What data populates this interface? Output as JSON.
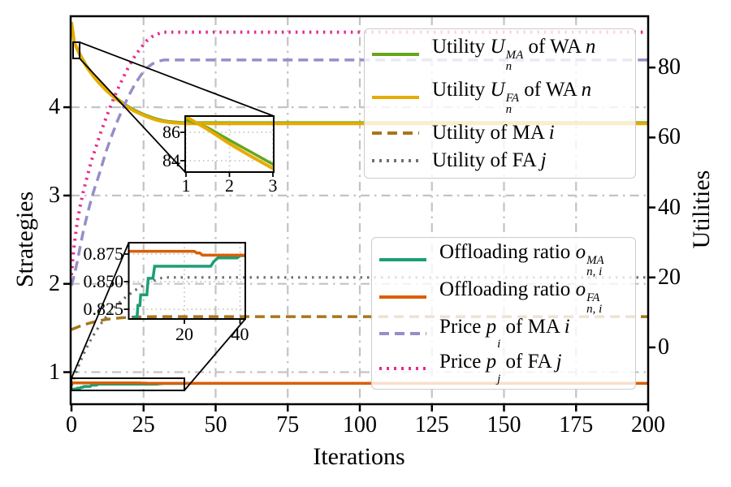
{
  "axes": {
    "x": {
      "label": "Iterations",
      "range": [
        0,
        200
      ],
      "ticks": [
        {
          "label": "0",
          "value": 0
        },
        {
          "label": "25",
          "value": 25
        },
        {
          "label": "50",
          "value": 50
        },
        {
          "label": "75",
          "value": 75
        },
        {
          "label": "100",
          "value": 100
        },
        {
          "label": "125",
          "value": 125
        },
        {
          "label": "150",
          "value": 150
        },
        {
          "label": "175",
          "value": 175
        },
        {
          "label": "200",
          "value": 200
        }
      ]
    },
    "left": {
      "label": "Strategies",
      "range": [
        0.64,
        5.04
      ],
      "ticks": [
        {
          "label": "4",
          "value": 4
        },
        {
          "label": "3",
          "value": 3
        },
        {
          "label": "2",
          "value": 2
        },
        {
          "label": "1",
          "value": 1
        }
      ]
    },
    "right": {
      "label": "Utilities",
      "range": [
        -16,
        95
      ],
      "ticks": [
        {
          "label": "80",
          "value": 80
        },
        {
          "label": "60",
          "value": 60
        },
        {
          "label": "40",
          "value": 40
        },
        {
          "label": "20",
          "value": 20
        },
        {
          "label": "0",
          "value": 0
        }
      ]
    }
  },
  "colors": {
    "green": "#66a61e",
    "yellow": "#e6ab02",
    "brown": "#a6761d",
    "gray": "#6f6f6f",
    "teal": "#1b9e77",
    "orange": "#d95f02",
    "purple": "#958fc9",
    "pink": "#e7298a",
    "grid": "#c3c3c3",
    "frame": "#000000"
  },
  "chart_data": {
    "type": "line",
    "xlabel": "Iterations",
    "ylabel_left": "Strategies",
    "ylabel_right": "Utilities",
    "x_range": [
      0,
      200
    ],
    "grid": "dash-dot gridlines at x ticks (25..200) and left-axis ticks (1..4)",
    "series": [
      {
        "name": "Utility U_n^MA of WA n",
        "axis": "right",
        "color_key": "green",
        "dash": "solid",
        "width": 3.5,
        "points": [
          [
            0,
            92.6
          ],
          [
            0.5,
            89.5
          ],
          [
            1,
            86.9
          ],
          [
            1.5,
            86.32
          ],
          [
            2,
            85.45
          ],
          [
            2.5,
            84.6
          ],
          [
            3,
            83.75
          ],
          [
            4,
            82.2
          ],
          [
            5,
            80.8
          ],
          [
            6,
            79.6
          ],
          [
            8,
            77.4
          ],
          [
            10,
            75.5
          ],
          [
            12,
            73.8
          ],
          [
            14,
            72.3
          ],
          [
            16,
            71.0
          ],
          [
            18,
            69.8
          ],
          [
            20,
            68.7
          ],
          [
            22,
            67.8
          ],
          [
            24,
            67.0
          ],
          [
            26,
            66.3
          ],
          [
            28,
            65.7
          ],
          [
            30,
            65.2
          ],
          [
            32,
            64.8
          ],
          [
            34,
            64.55
          ],
          [
            36,
            64.4
          ],
          [
            38,
            64.3
          ],
          [
            40,
            64.25
          ],
          [
            200,
            64.25
          ]
        ]
      },
      {
        "name": "Utility U_n^FA of WA n",
        "axis": "right",
        "color_key": "yellow",
        "dash": "solid",
        "width": 4,
        "points": [
          [
            0,
            93.0
          ],
          [
            0.5,
            90.0
          ],
          [
            1,
            87.1
          ],
          [
            1.5,
            86.2
          ],
          [
            2,
            85.2
          ],
          [
            2.5,
            84.3
          ],
          [
            3,
            83.45
          ],
          [
            4,
            81.9
          ],
          [
            5,
            80.5
          ],
          [
            6,
            79.3
          ],
          [
            8,
            77.1
          ],
          [
            10,
            75.2
          ],
          [
            12,
            73.5
          ],
          [
            14,
            72.0
          ],
          [
            16,
            70.7
          ],
          [
            18,
            69.5
          ],
          [
            20,
            68.4
          ],
          [
            22,
            67.5
          ],
          [
            24,
            66.7
          ],
          [
            26,
            66.0
          ],
          [
            28,
            65.4
          ],
          [
            30,
            64.9
          ],
          [
            32,
            64.55
          ],
          [
            34,
            64.3
          ],
          [
            36,
            64.15
          ],
          [
            38,
            64.06
          ],
          [
            40,
            64.0
          ],
          [
            200,
            64.0
          ]
        ]
      },
      {
        "name": "Utility of MA i",
        "axis": "right",
        "color_key": "brown",
        "dash": "dashed",
        "width": 3.5,
        "points": [
          [
            0,
            5.1
          ],
          [
            3,
            6.1
          ],
          [
            6,
            6.9
          ],
          [
            9,
            7.5
          ],
          [
            12,
            8.0
          ],
          [
            15,
            8.3
          ],
          [
            18,
            8.5
          ],
          [
            21,
            8.62
          ],
          [
            24,
            8.7
          ],
          [
            27,
            8.76
          ],
          [
            30,
            8.8
          ],
          [
            200,
            8.8
          ]
        ]
      },
      {
        "name": "Utility of FA j",
        "axis": "right",
        "color_key": "gray",
        "dash": "dotted",
        "width": 3.2,
        "points": [
          [
            0,
            -11
          ],
          [
            1,
            -8.5
          ],
          [
            2,
            -6.3
          ],
          [
            3,
            -4.2
          ],
          [
            4,
            -2.3
          ],
          [
            5,
            -0.5
          ],
          [
            6,
            1.1
          ],
          [
            7,
            2.6
          ],
          [
            8,
            4.0
          ],
          [
            9,
            5.3
          ],
          [
            10,
            6.5
          ],
          [
            11,
            7.6
          ],
          [
            12,
            8.7
          ],
          [
            13,
            9.7
          ],
          [
            14,
            10.6
          ],
          [
            15,
            11.5
          ],
          [
            16,
            12.3
          ],
          [
            17,
            13.1
          ],
          [
            18,
            13.8
          ],
          [
            19,
            14.5
          ],
          [
            20,
            15.1
          ],
          [
            21,
            15.7
          ],
          [
            22,
            16.3
          ],
          [
            23,
            16.8
          ],
          [
            24,
            17.3
          ],
          [
            25,
            17.7
          ],
          [
            26,
            18.1
          ],
          [
            27,
            18.5
          ],
          [
            28,
            18.9
          ],
          [
            29,
            19.2
          ],
          [
            30,
            19.5
          ],
          [
            31,
            19.8
          ],
          [
            32,
            20.0
          ],
          [
            200,
            20.0
          ]
        ]
      },
      {
        "name": "Offloading ratio o_n,i^MA",
        "axis": "left",
        "color_key": "teal",
        "dash": "solid",
        "width": 3.5,
        "points": [
          [
            0,
            0.808
          ],
          [
            1.5,
            0.809
          ],
          [
            2,
            0.818
          ],
          [
            3,
            0.818
          ],
          [
            3.3,
            0.8285
          ],
          [
            4,
            0.8285
          ],
          [
            4.3,
            0.838
          ],
          [
            6.5,
            0.838
          ],
          [
            7,
            0.853
          ],
          [
            8.7,
            0.853
          ],
          [
            9.3,
            0.864
          ],
          [
            29.5,
            0.864
          ],
          [
            30.5,
            0.868
          ],
          [
            32,
            0.8715
          ],
          [
            39,
            0.8715
          ],
          [
            40,
            0.8735
          ],
          [
            200,
            0.8735
          ]
        ]
      },
      {
        "name": "Offloading ratio o_n,i^FA",
        "axis": "left",
        "color_key": "orange",
        "dash": "solid",
        "width": 3.5,
        "points": [
          [
            0,
            0.8775
          ],
          [
            23.5,
            0.8775
          ],
          [
            24.5,
            0.876
          ],
          [
            25.5,
            0.876
          ],
          [
            26.5,
            0.874
          ],
          [
            200,
            0.874
          ]
        ]
      },
      {
        "name": "Price p_i of MA i",
        "axis": "left",
        "color_key": "purple",
        "dash": "dashed",
        "width": 3.5,
        "points": [
          [
            0,
            1.98
          ],
          [
            1,
            2.1
          ],
          [
            2,
            2.25
          ],
          [
            3,
            2.42
          ],
          [
            4,
            2.58
          ],
          [
            5,
            2.72
          ],
          [
            6,
            2.85
          ],
          [
            7,
            2.97
          ],
          [
            8,
            3.08
          ],
          [
            9,
            3.18
          ],
          [
            10,
            3.28
          ],
          [
            12,
            3.5
          ],
          [
            14,
            3.68
          ],
          [
            16,
            3.85
          ],
          [
            18,
            4.0
          ],
          [
            20,
            4.14
          ],
          [
            22,
            4.26
          ],
          [
            24,
            4.36
          ],
          [
            26,
            4.44
          ],
          [
            28,
            4.49
          ],
          [
            30,
            4.52
          ],
          [
            32,
            4.535
          ],
          [
            200,
            4.535
          ]
        ]
      },
      {
        "name": "Price p_j of FA j",
        "axis": "left",
        "color_key": "pink",
        "dash": "dotted",
        "width": 4,
        "points": [
          [
            0,
            2.1
          ],
          [
            0.5,
            2.3
          ],
          [
            1,
            2.45
          ],
          [
            2,
            2.7
          ],
          [
            3,
            2.88
          ],
          [
            4,
            3.03
          ],
          [
            5,
            3.16
          ],
          [
            6,
            3.28
          ],
          [
            7,
            3.4
          ],
          [
            8,
            3.5
          ],
          [
            9,
            3.6
          ],
          [
            10,
            3.7
          ],
          [
            12,
            3.88
          ],
          [
            14,
            4.05
          ],
          [
            16,
            4.2
          ],
          [
            18,
            4.34
          ],
          [
            20,
            4.47
          ],
          [
            22,
            4.58
          ],
          [
            24,
            4.67
          ],
          [
            26,
            4.75
          ],
          [
            28,
            4.8
          ],
          [
            30,
            4.83
          ],
          [
            32,
            4.85
          ],
          [
            200,
            4.85
          ]
        ]
      }
    ],
    "insets": [
      {
        "id": "inset-utility",
        "x_range": [
          1,
          3
        ],
        "y_range": [
          83.2,
          87.2
        ],
        "x_ticks": [
          {
            "label": "1",
            "value": 1
          },
          {
            "label": "2",
            "value": 2
          },
          {
            "label": "3",
            "value": 3
          }
        ],
        "y_ticks": [
          {
            "label": "86",
            "value": 86
          },
          {
            "label": "84",
            "value": 84
          }
        ],
        "series_idx": [
          0,
          1
        ]
      },
      {
        "id": "inset-ratio",
        "x_range": [
          0,
          42
        ],
        "y_range": [
          0.8162,
          0.8853
        ],
        "x_ticks": [
          {
            "label": "20",
            "value": 20
          },
          {
            "label": "40",
            "value": 40
          }
        ],
        "y_ticks": [
          {
            "label": "0.875",
            "value": 0.875
          },
          {
            "label": "0.850",
            "value": 0.85
          },
          {
            "label": "0.825",
            "value": 0.825
          }
        ],
        "series_idx": [
          4,
          5
        ]
      }
    ]
  },
  "legends": [
    {
      "rows": [
        {
          "style": "solid",
          "color_key": "green",
          "parts": {
            "pre": "Utility",
            "v1": "U",
            "sup": "MA",
            "sub": "n",
            "post": "of WA",
            "v2": "n"
          }
        },
        {
          "style": "solid",
          "color_key": "yellow",
          "parts": {
            "pre": "Utility",
            "v1": "U",
            "sup": "FA",
            "sub": "n",
            "post": "of WA",
            "v2": "n"
          }
        },
        {
          "style": "dashed",
          "color_key": "brown",
          "parts": {
            "pre": "Utility of MA",
            "v1": "",
            "sup": "",
            "sub": "",
            "post": "",
            "v2": "i"
          }
        },
        {
          "style": "dotted",
          "color_key": "gray",
          "parts": {
            "pre": "Utility of FA",
            "v1": "",
            "sup": "",
            "sub": "",
            "post": "",
            "v2": "j"
          }
        }
      ]
    },
    {
      "rows": [
        {
          "style": "solid",
          "color_key": "teal",
          "parts": {
            "pre": "Offloading ratio",
            "v1": "o",
            "sup": "MA",
            "sub": "n, i",
            "post": "",
            "v2": ""
          }
        },
        {
          "style": "solid",
          "color_key": "orange",
          "parts": {
            "pre": "Offloading ratio",
            "v1": "o",
            "sup": "FA",
            "sub": "n, i",
            "post": "",
            "v2": ""
          }
        },
        {
          "style": "dashed",
          "color_key": "purple",
          "parts": {
            "pre": "Price",
            "v1": "p",
            "sup": "",
            "sub": "i",
            "post": "of MA",
            "v2": "i"
          }
        },
        {
          "style": "dotted",
          "color_key": "pink",
          "parts": {
            "pre": "Price",
            "v1": "p",
            "sup": "",
            "sub": "j",
            "post": "of FA",
            "v2": "j"
          }
        }
      ]
    }
  ]
}
